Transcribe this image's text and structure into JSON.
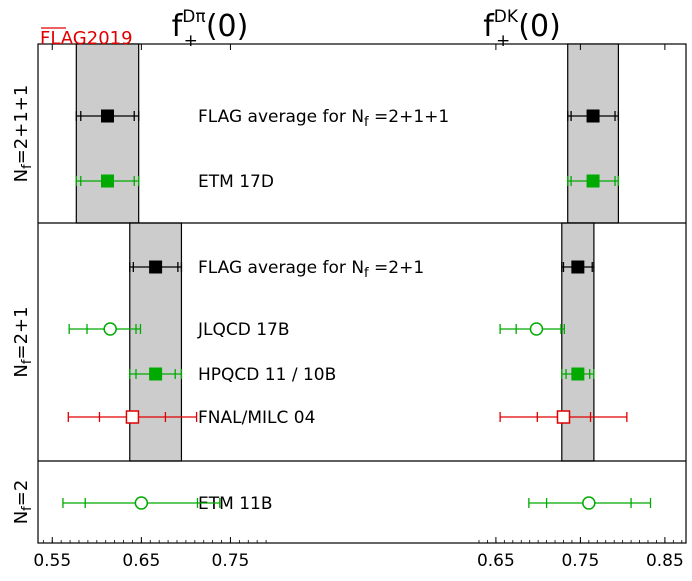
{
  "chart_data": {
    "type": "scatter",
    "flag_label": "FLAG2019",
    "panels": [
      {
        "name": "fDpi",
        "title_main": "f",
        "title_sup": "Dπ",
        "title_sub": "+",
        "title_arg": "(0)",
        "xlim": [
          0.534,
          0.8
        ],
        "xticks": [
          "0.55",
          "0.65",
          "0.75"
        ],
        "xtick_values": [
          0.55,
          0.65,
          0.75
        ]
      },
      {
        "name": "fDK",
        "title_main": "f",
        "title_sup": "DK",
        "title_sub": "+",
        "title_arg": "(0)",
        "xlim": [
          0.63,
          0.875
        ],
        "xticks": [
          "0.65",
          "0.75",
          "0.85"
        ],
        "xtick_values": [
          0.65,
          0.75,
          0.85
        ]
      }
    ],
    "groups": [
      {
        "label_main": "N",
        "label_sub": "f",
        "label_rest": "=2+1+1",
        "bands": [
          {
            "center": 0.612,
            "half_width": 0.035
          },
          {
            "center": 0.765,
            "half_width": 0.03
          }
        ],
        "rows": [
          {
            "label_text": "FLAG average for ",
            "label_main": "N",
            "label_sub": "f",
            "label_rest": " =2+1+1",
            "color": "#000000",
            "marker": "filled",
            "points": [
              {
                "value": 0.612,
                "stat": [
                  0.582,
                  0.642
                ],
                "total": [
                  0.577,
                  0.647
                ]
              },
              {
                "value": 0.765,
                "stat": [
                  0.739,
                  0.791
                ],
                "total": [
                  0.735,
                  0.795
                ]
              }
            ]
          },
          {
            "label_text": "ETM 17D",
            "color": "#00aa00",
            "marker": "filled",
            "points": [
              {
                "value": 0.612,
                "stat": [
                  0.582,
                  0.642
                ],
                "total": [
                  0.577,
                  0.647
                ]
              },
              {
                "value": 0.765,
                "stat": [
                  0.739,
                  0.791
                ],
                "total": [
                  0.735,
                  0.795
                ]
              }
            ]
          }
        ]
      },
      {
        "label_main": "N",
        "label_sub": "f",
        "label_rest": "=2+1",
        "bands": [
          {
            "center": 0.666,
            "half_width": 0.029
          },
          {
            "center": 0.747,
            "half_width": 0.019
          }
        ],
        "rows": [
          {
            "label_text": "FLAG average for ",
            "label_main": "N",
            "label_sub": "f",
            "label_rest": " =2+1",
            "color": "#000000",
            "marker": "filled",
            "points": [
              {
                "value": 0.666,
                "stat": [
                  0.641,
                  0.691
                ],
                "total": [
                  0.637,
                  0.695
                ]
              },
              {
                "value": 0.747,
                "stat": [
                  0.73,
                  0.764
                ],
                "total": [
                  0.728,
                  0.766
                ]
              }
            ]
          },
          {
            "label_text": "JLQCD 17B",
            "color": "#00aa00",
            "marker": "open-circle",
            "points": [
              {
                "value": 0.615,
                "stat": [
                  0.589,
                  0.644
                ],
                "total": [
                  0.569,
                  0.649
                ]
              },
              {
                "value": 0.698,
                "stat": [
                  0.674,
                  0.727
                ],
                "total": [
                  0.655,
                  0.731
                ]
              }
            ]
          },
          {
            "label_text": "HPQCD 11 / 10B",
            "color": "#00aa00",
            "marker": "filled",
            "points": [
              {
                "value": 0.666,
                "stat": [
                  0.644,
                  0.688
                ],
                "total": [
                  0.637,
                  0.695
                ]
              },
              {
                "value": 0.747,
                "stat": [
                  0.733,
                  0.761
                ],
                "total": [
                  0.728,
                  0.766
                ]
              }
            ]
          },
          {
            "label_text": "FNAL/MILC 04",
            "color": "#e00000",
            "marker": "open-square",
            "points": [
              {
                "value": 0.64,
                "stat": [
                  0.603,
                  0.677
                ],
                "total": [
                  0.568,
                  0.712
                ]
              },
              {
                "value": 0.73,
                "stat": [
                  0.699,
                  0.762
                ],
                "total": [
                  0.655,
                  0.805
                ]
              }
            ]
          }
        ]
      },
      {
        "label_main": "N",
        "label_sub": "f",
        "label_rest": "=2",
        "bands": [],
        "rows": [
          {
            "label_text": "ETM 11B",
            "color": "#00aa00",
            "marker": "open-circle",
            "points": [
              {
                "value": 0.65,
                "stat": [
                  0.587,
                  0.713
                ],
                "total": [
                  0.562,
                  0.738
                ]
              },
              {
                "value": 0.76,
                "stat": [
                  0.71,
                  0.81
                ],
                "total": [
                  0.689,
                  0.833
                ]
              }
            ]
          }
        ]
      }
    ]
  }
}
